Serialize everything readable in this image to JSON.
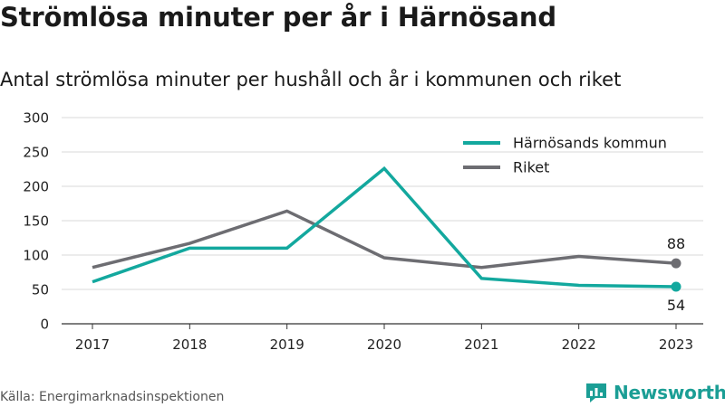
{
  "header": {
    "title": "Strömlösa minuter per år i Härnösand",
    "subtitle": "Antal strömlösa minuter per hushåll och år i kommunen och riket"
  },
  "footer": {
    "source": "Källa: Energimarknadsinspektionen",
    "brand": "Newsworthy",
    "brand_color": "#1b9e95"
  },
  "chart_data": {
    "type": "line",
    "x": [
      "2017",
      "2018",
      "2019",
      "2020",
      "2021",
      "2022",
      "2023"
    ],
    "ylim": [
      0,
      300
    ],
    "yticks": [
      0,
      50,
      100,
      150,
      200,
      250,
      300
    ],
    "grid": true,
    "legend_position": "top-right",
    "series": [
      {
        "name": "Härnösands kommun",
        "color": "#13a89e",
        "values": [
          61,
          110,
          110,
          226,
          66,
          56,
          54
        ],
        "end_label": "54"
      },
      {
        "name": "Riket",
        "color": "#6d6d72",
        "values": [
          82,
          117,
          164,
          96,
          82,
          98,
          88
        ],
        "end_label": "88"
      }
    ]
  }
}
